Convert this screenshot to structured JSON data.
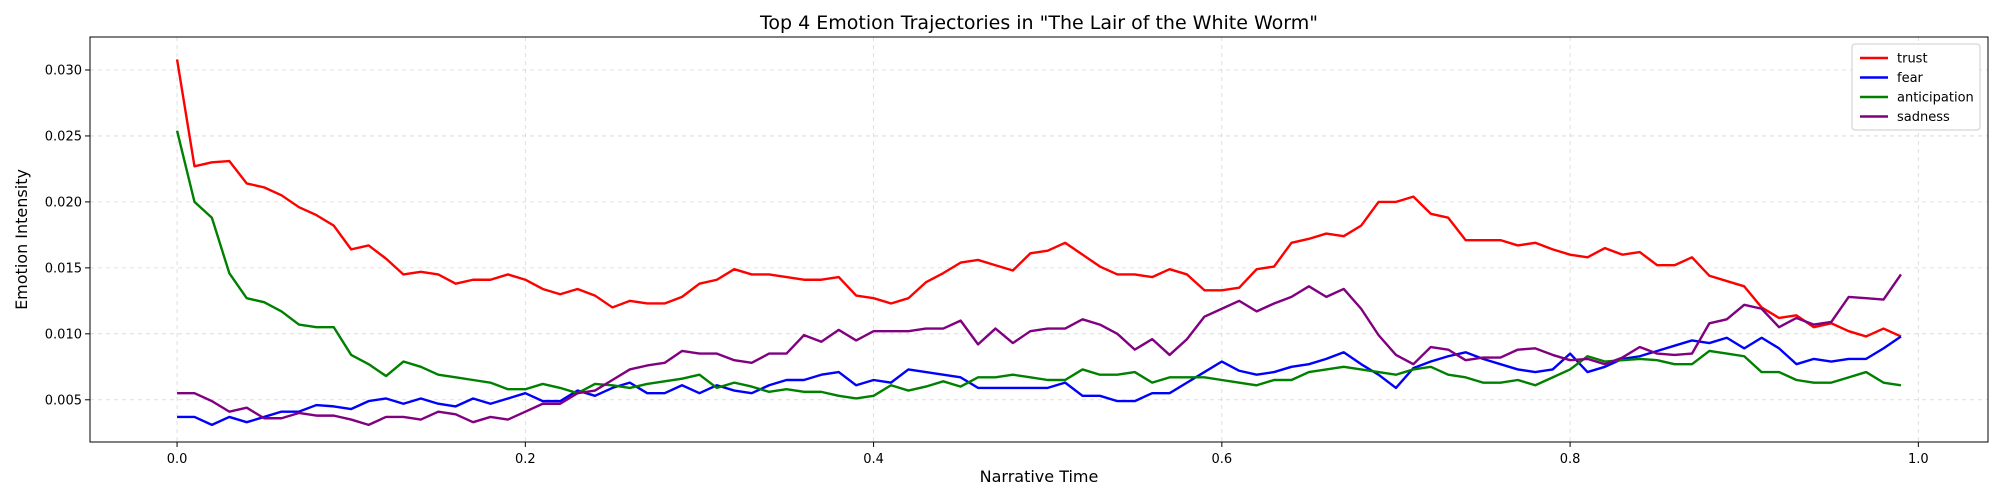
{
  "chart_data": {
    "type": "line",
    "title": "Top 4 Emotion Trajectories in \"The Lair of the White Worm\"",
    "xlabel": "Narrative Time",
    "ylabel": "Emotion Intensity",
    "xlim": [
      -0.05,
      1.04
    ],
    "ylim": [
      0.0018,
      0.0325
    ],
    "xticks": [
      0.0,
      0.2,
      0.4,
      0.6,
      0.8,
      1.0
    ],
    "xtick_labels": [
      "0.0",
      "0.2",
      "0.4",
      "0.6",
      "0.8",
      "1.0"
    ],
    "yticks": [
      0.005,
      0.01,
      0.015,
      0.02,
      0.025,
      0.03
    ],
    "ytick_labels": [
      "0.005",
      "0.010",
      "0.015",
      "0.020",
      "0.025",
      "0.030"
    ],
    "grid": true,
    "legend_position": "top-right",
    "x": [
      0.0,
      0.01,
      0.02,
      0.03,
      0.04,
      0.05,
      0.06,
      0.07,
      0.08,
      0.09,
      0.1,
      0.11,
      0.12,
      0.13,
      0.14,
      0.15,
      0.16,
      0.17,
      0.18,
      0.19,
      0.2,
      0.21,
      0.22,
      0.23,
      0.24,
      0.25,
      0.26,
      0.27,
      0.28,
      0.29,
      0.3,
      0.31,
      0.32,
      0.33,
      0.34,
      0.35,
      0.36,
      0.37,
      0.38,
      0.39,
      0.4,
      0.41,
      0.42,
      0.43,
      0.44,
      0.45,
      0.46,
      0.47,
      0.48,
      0.49,
      0.5,
      0.51,
      0.52,
      0.53,
      0.54,
      0.55,
      0.56,
      0.57,
      0.58,
      0.59,
      0.6,
      0.61,
      0.62,
      0.63,
      0.64,
      0.65,
      0.66,
      0.67,
      0.68,
      0.69,
      0.7,
      0.71,
      0.72,
      0.73,
      0.74,
      0.75,
      0.76,
      0.77,
      0.78,
      0.79,
      0.8,
      0.81,
      0.82,
      0.83,
      0.84,
      0.85,
      0.86,
      0.87,
      0.88,
      0.89,
      0.9,
      0.91,
      0.92,
      0.93,
      0.94,
      0.95,
      0.96,
      0.97,
      0.98,
      0.99
    ],
    "series": [
      {
        "name": "trust",
        "color": "#ff0000",
        "values": [
          0.0308,
          0.0227,
          0.023,
          0.0231,
          0.0214,
          0.0211,
          0.0205,
          0.0196,
          0.019,
          0.0182,
          0.0164,
          0.0167,
          0.0157,
          0.0145,
          0.0147,
          0.0145,
          0.0138,
          0.0141,
          0.0141,
          0.0145,
          0.0141,
          0.0134,
          0.013,
          0.0134,
          0.0129,
          0.012,
          0.0125,
          0.0123,
          0.0123,
          0.0128,
          0.0138,
          0.0141,
          0.0149,
          0.0145,
          0.0145,
          0.0143,
          0.0141,
          0.0141,
          0.0143,
          0.0129,
          0.0127,
          0.0123,
          0.0127,
          0.0139,
          0.0146,
          0.0154,
          0.0156,
          0.0152,
          0.0148,
          0.0161,
          0.0163,
          0.0169,
          0.016,
          0.0151,
          0.0145,
          0.0145,
          0.0143,
          0.0149,
          0.0145,
          0.0133,
          0.0133,
          0.0135,
          0.0149,
          0.0151,
          0.0169,
          0.0172,
          0.0176,
          0.0174,
          0.0182,
          0.02,
          0.02,
          0.0204,
          0.0191,
          0.0188,
          0.0171,
          0.0171,
          0.0171,
          0.0167,
          0.0169,
          0.0164,
          0.016,
          0.0158,
          0.0165,
          0.016,
          0.0162,
          0.0152,
          0.0152,
          0.0158,
          0.0144,
          0.014,
          0.0136,
          0.012,
          0.0112,
          0.0114,
          0.0105,
          0.0108,
          0.0102,
          0.0098,
          0.0104,
          0.0098
        ]
      },
      {
        "name": "fear",
        "color": "#0000ff",
        "values": [
          0.0037,
          0.0037,
          0.0031,
          0.0037,
          0.0033,
          0.0037,
          0.0041,
          0.0041,
          0.0046,
          0.0045,
          0.0043,
          0.0049,
          0.0051,
          0.0047,
          0.0051,
          0.0047,
          0.0045,
          0.0051,
          0.0047,
          0.0051,
          0.0055,
          0.0049,
          0.0049,
          0.0057,
          0.0053,
          0.0059,
          0.0063,
          0.0055,
          0.0055,
          0.0061,
          0.0055,
          0.0061,
          0.0057,
          0.0055,
          0.0061,
          0.0065,
          0.0065,
          0.0069,
          0.0071,
          0.0061,
          0.0065,
          0.0063,
          0.0073,
          0.0071,
          0.0069,
          0.0067,
          0.0059,
          0.0059,
          0.0059,
          0.0059,
          0.0059,
          0.0063,
          0.0053,
          0.0053,
          0.0049,
          0.0049,
          0.0055,
          0.0055,
          0.0063,
          0.0071,
          0.0079,
          0.0072,
          0.0069,
          0.0071,
          0.0075,
          0.0077,
          0.0081,
          0.0086,
          0.0077,
          0.0069,
          0.0059,
          0.0074,
          0.0079,
          0.0083,
          0.0086,
          0.0081,
          0.0077,
          0.0073,
          0.0071,
          0.0073,
          0.0085,
          0.0071,
          0.0075,
          0.0081,
          0.0083,
          0.0087,
          0.0091,
          0.0095,
          0.0093,
          0.0097,
          0.0089,
          0.0097,
          0.0089,
          0.0077,
          0.0081,
          0.0079,
          0.0081,
          0.0081,
          0.0089,
          0.0098
        ]
      },
      {
        "name": "anticipation",
        "color": "#008000",
        "values": [
          0.0254,
          0.02,
          0.0188,
          0.0146,
          0.0127,
          0.0124,
          0.0117,
          0.0107,
          0.0105,
          0.0105,
          0.0084,
          0.0077,
          0.0068,
          0.0079,
          0.0075,
          0.0069,
          0.0067,
          0.0065,
          0.0063,
          0.0058,
          0.0058,
          0.0062,
          0.0059,
          0.0055,
          0.0062,
          0.0061,
          0.0059,
          0.0062,
          0.0064,
          0.0066,
          0.0069,
          0.0059,
          0.0063,
          0.006,
          0.0056,
          0.0058,
          0.0056,
          0.0056,
          0.0053,
          0.0051,
          0.0053,
          0.0061,
          0.0057,
          0.006,
          0.0064,
          0.006,
          0.0067,
          0.0067,
          0.0069,
          0.0067,
          0.0065,
          0.0065,
          0.0073,
          0.0069,
          0.0069,
          0.0071,
          0.0063,
          0.0067,
          0.0067,
          0.0067,
          0.0065,
          0.0063,
          0.0061,
          0.0065,
          0.0065,
          0.0071,
          0.0073,
          0.0075,
          0.0073,
          0.0071,
          0.0069,
          0.0073,
          0.0075,
          0.0069,
          0.0067,
          0.0063,
          0.0063,
          0.0065,
          0.0061,
          0.0067,
          0.0073,
          0.0083,
          0.0079,
          0.008,
          0.0081,
          0.008,
          0.0077,
          0.0077,
          0.0087,
          0.0085,
          0.0083,
          0.0071,
          0.0071,
          0.0065,
          0.0063,
          0.0063,
          0.0067,
          0.0071,
          0.0063,
          0.0061
        ]
      },
      {
        "name": "sadness",
        "color": "#800080",
        "values": [
          0.0055,
          0.0055,
          0.0049,
          0.0041,
          0.0044,
          0.0036,
          0.0036,
          0.004,
          0.0038,
          0.0038,
          0.0035,
          0.0031,
          0.0037,
          0.0037,
          0.0035,
          0.0041,
          0.0039,
          0.0033,
          0.0037,
          0.0035,
          0.0041,
          0.0047,
          0.0047,
          0.0055,
          0.0057,
          0.0065,
          0.0073,
          0.0076,
          0.0078,
          0.0087,
          0.0085,
          0.0085,
          0.008,
          0.0078,
          0.0085,
          0.0085,
          0.0099,
          0.0094,
          0.0103,
          0.0095,
          0.0102,
          0.0102,
          0.0102,
          0.0104,
          0.0104,
          0.011,
          0.0092,
          0.0104,
          0.0093,
          0.0102,
          0.0104,
          0.0104,
          0.0111,
          0.0107,
          0.01,
          0.0088,
          0.0096,
          0.0084,
          0.0096,
          0.0113,
          0.0119,
          0.0125,
          0.0117,
          0.0123,
          0.0128,
          0.0136,
          0.0128,
          0.0134,
          0.0119,
          0.0099,
          0.0084,
          0.0077,
          0.009,
          0.0088,
          0.008,
          0.0082,
          0.0082,
          0.0088,
          0.0089,
          0.0084,
          0.008,
          0.0081,
          0.0077,
          0.0082,
          0.009,
          0.0085,
          0.0084,
          0.0085,
          0.0108,
          0.0111,
          0.0122,
          0.0119,
          0.0105,
          0.0112,
          0.0107,
          0.0109,
          0.0128,
          0.0127,
          0.0126,
          0.0145
        ]
      }
    ]
  }
}
